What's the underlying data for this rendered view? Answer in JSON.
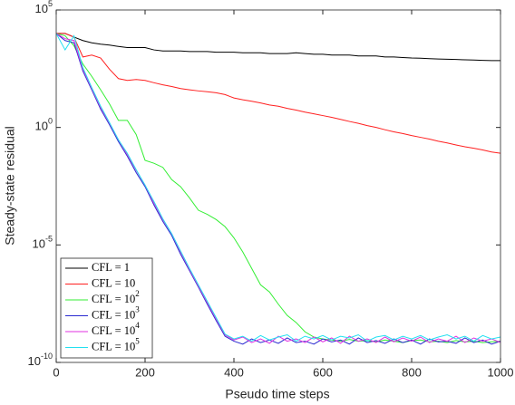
{
  "chart_data": {
    "type": "line",
    "ylog": true,
    "xlabel": "Pseudo time steps",
    "ylabel": "Steady-state residual",
    "xlim": [
      0,
      1000
    ],
    "ylim": [
      1e-10,
      100000.0
    ],
    "xticks": [
      0,
      200,
      400,
      600,
      800,
      1000
    ],
    "yticks": [
      {
        "value": 1e-10,
        "label": "10^-10"
      },
      {
        "value": 1e-05,
        "label": "10^-5"
      },
      {
        "value": 1,
        "label": "10^0"
      },
      {
        "value": 100000.0,
        "label": "10^5"
      }
    ],
    "legend": "lower left",
    "x": [
      0,
      20,
      40,
      60,
      80,
      100,
      120,
      140,
      160,
      180,
      200,
      220,
      240,
      260,
      280,
      300,
      320,
      340,
      360,
      380,
      400,
      420,
      440,
      460,
      480,
      500,
      520,
      540,
      560,
      580,
      600,
      620,
      640,
      660,
      680,
      700,
      720,
      740,
      760,
      780,
      800,
      820,
      840,
      860,
      880,
      900,
      920,
      940,
      960,
      980,
      1000
    ],
    "series": [
      {
        "name": "CFL = 1",
        "color": "#000000",
        "values": [
          10000.0,
          10000.0,
          7000.0,
          5000.0,
          4000.0,
          3500.0,
          3200.0,
          2800.0,
          2500.0,
          2500.0,
          2500.0,
          2000.0,
          1800.0,
          1800.0,
          1800.0,
          1700.0,
          1700.0,
          1700.0,
          1600.0,
          1600.0,
          1600.0,
          1500.0,
          1500.0,
          1500.0,
          1400.0,
          1400.0,
          1400.0,
          1500.0,
          1400.0,
          1300.0,
          1300.0,
          1200.0,
          1200.0,
          1200.0,
          1100.0,
          1100.0,
          1100.0,
          1000.0,
          1000.0,
          950,
          900,
          880,
          850,
          820,
          800,
          780,
          760,
          740,
          720,
          700,
          700
        ]
      },
      {
        "name": "CFL = 10",
        "color": "#ff2020",
        "values": [
          10000.0,
          10000.0,
          7000.0,
          1000.0,
          1200.0,
          900,
          300,
          120,
          100,
          110,
          100,
          80,
          65,
          55,
          45,
          40,
          36,
          33,
          30,
          25,
          18,
          15,
          13,
          11,
          9,
          8,
          6.5,
          5.5,
          4.5,
          3.8,
          3.2,
          2.7,
          2.2,
          1.8,
          1.5,
          1.2,
          1.0,
          0.8,
          0.65,
          0.55,
          0.45,
          0.38,
          0.32,
          0.26,
          0.22,
          0.18,
          0.15,
          0.13,
          0.11,
          0.09,
          0.08
        ]
      },
      {
        "name": "CFL = 10^2",
        "color": "#33ee33",
        "values": [
          10000.0,
          8000.0,
          3000.0,
          500,
          150,
          40,
          10,
          2,
          2,
          0.5,
          0.04,
          0.03,
          0.02,
          0.006,
          0.003,
          0.001,
          0.0003,
          0.0002,
          0.00012,
          6e-05,
          2e-05,
          5e-06,
          1e-06,
          2e-07,
          1e-07,
          3e-08,
          1e-08,
          5e-09,
          2e-09,
          1.2e-09,
          1e-09,
          9e-10,
          8e-10,
          9.5e-10,
          8e-10,
          8.5e-10,
          7.5e-10,
          9e-10,
          8e-10,
          7e-10,
          8.5e-10,
          9e-10,
          7.5e-10,
          8e-10,
          7e-10,
          8.5e-10,
          7.5e-10,
          8e-10,
          7e-10,
          7.5e-10,
          8e-10
        ]
      },
      {
        "name": "CFL = 10^3",
        "color": "#2a2ad0",
        "values": [
          10000.0,
          5000.0,
          4000.0,
          250,
          40,
          6,
          1.3,
          0.25,
          0.06,
          0.012,
          0.003,
          0.0005,
          0.0001,
          2.5e-05,
          4e-06,
          8e-07,
          1.6e-07,
          3e-08,
          6e-09,
          1.3e-09,
          8e-10,
          6e-10,
          1e-09,
          7e-10,
          9e-10,
          6.5e-10,
          1.1e-09,
          7e-10,
          8e-10,
          6e-10,
          1e-09,
          7.5e-10,
          9e-10,
          6e-10,
          1.1e-09,
          7e-10,
          8.5e-10,
          6.5e-10,
          1e-09,
          7e-10,
          9e-10,
          6e-10,
          1e-09,
          7.5e-10,
          8e-10,
          6.5e-10,
          1.1e-09,
          7e-10,
          9e-10,
          6e-10,
          8e-10
        ]
      },
      {
        "name": "CFL = 10^4",
        "color": "#e030e0",
        "values": [
          10000.0,
          6000.0,
          5000.0,
          300,
          45,
          7,
          1.5,
          0.3,
          0.07,
          0.015,
          0.0035,
          0.0006,
          0.00012,
          3e-05,
          5e-06,
          9e-07,
          1.8e-07,
          3.5e-08,
          7e-09,
          1.5e-09,
          9e-10,
          1.2e-09,
          7e-10,
          1e-09,
          6.5e-10,
          1.3e-09,
          8e-10,
          1e-09,
          7e-10,
          1.2e-09,
          7.5e-10,
          1.1e-09,
          6.5e-10,
          1.3e-09,
          8e-10,
          1e-09,
          7e-10,
          1.2e-09,
          7.5e-10,
          1.1e-09,
          8e-10,
          1.2e-09,
          7e-10,
          1e-09,
          8e-10,
          1.3e-09,
          7e-10,
          1.1e-09,
          8e-10,
          1e-09,
          7e-10
        ]
      },
      {
        "name": "CFL = 10^5",
        "color": "#22e0f0",
        "values": [
          10000.0,
          2000.0,
          8000.0,
          350,
          50,
          8,
          1.6,
          0.3,
          0.08,
          0.016,
          0.0035,
          0.0007,
          0.00013,
          3e-05,
          5.5e-06,
          1e-06,
          2e-07,
          4e-08,
          8e-09,
          1.6e-09,
          1e-09,
          1.3e-09,
          8e-10,
          1.4e-09,
          9e-10,
          1.2e-09,
          1.5e-09,
          8e-10,
          1.3e-09,
          1e-09,
          1.4e-09,
          9e-10,
          1.3e-09,
          1.1e-09,
          1.5e-09,
          8e-10,
          1.2e-09,
          1.4e-09,
          9e-10,
          1.3e-09,
          1e-09,
          1.4e-09,
          9e-10,
          1.2e-09,
          1.5e-09,
          1e-09,
          1.3e-09,
          8e-10,
          1.4e-09,
          1e-09,
          1.2e-09
        ]
      }
    ]
  }
}
